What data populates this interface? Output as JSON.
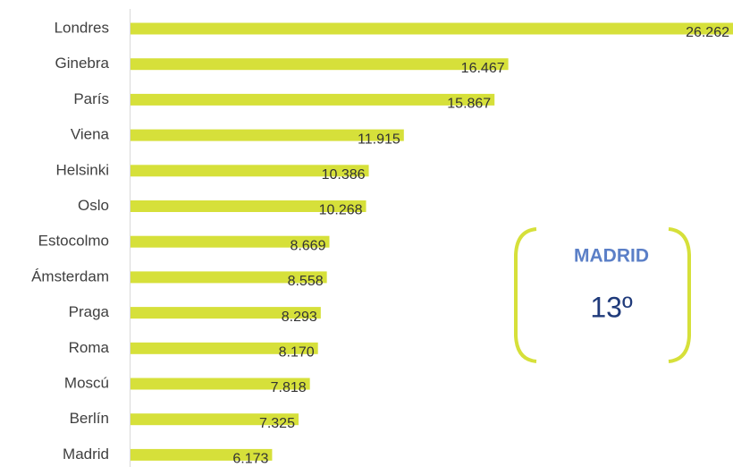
{
  "chart_data": {
    "type": "hbar",
    "categories": [
      "Londres",
      "Ginebra",
      "París",
      "Viena",
      "Helsinki",
      "Oslo",
      "Estocolmo",
      "Ámsterdam",
      "Praga",
      "Roma",
      "Moscú",
      "Berlín",
      "Madrid"
    ],
    "values": [
      26.262,
      16.467,
      15.867,
      11.915,
      10.386,
      10.268,
      8.669,
      8.558,
      8.293,
      8.17,
      7.818,
      7.325,
      6.173
    ],
    "value_labels": [
      "26.262",
      "16.467",
      "15.867",
      "11.915",
      "10.386",
      "10.268",
      "8.669",
      "8.558",
      "8.293",
      "8.170",
      "7.818",
      "7.325",
      "6.173"
    ],
    "color": "#d6e03a",
    "annotations": [
      "MADRID",
      "13º"
    ]
  }
}
